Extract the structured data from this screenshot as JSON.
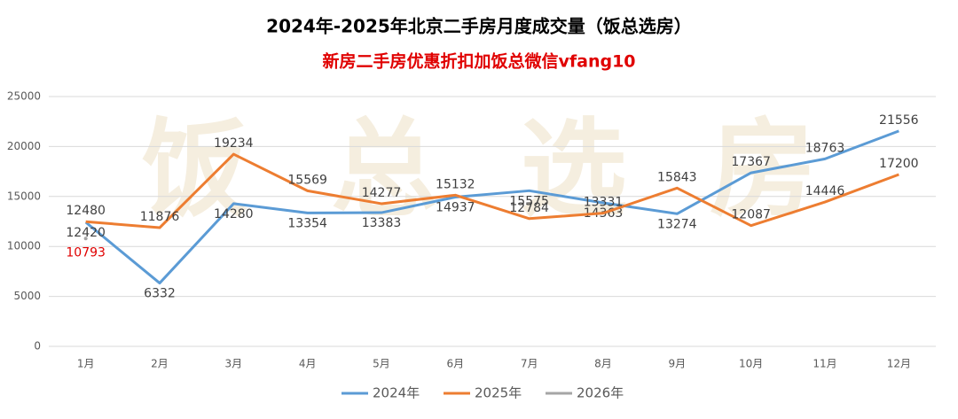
{
  "chart_data": {
    "type": "line",
    "title": "2024年-2025年北京二手房月度成交量（饭总选房）",
    "subtitle": "新房二手房优惠折扣加饭总微信vfang10",
    "watermark": "饭总选房",
    "categories": [
      "1月",
      "2月",
      "3月",
      "4月",
      "5月",
      "6月",
      "7月",
      "8月",
      "9月",
      "10月",
      "11月",
      "12月"
    ],
    "series": [
      {
        "name": "2024年",
        "color": "#5b9bd5",
        "label_color": "#404040",
        "values": [
          12420,
          6332,
          14280,
          13354,
          13383,
          14937,
          15575,
          14363,
          13274,
          17367,
          18763,
          21556
        ]
      },
      {
        "name": "2025年",
        "color": "#ed7d31",
        "label_color": "#404040",
        "values": [
          12480,
          11876,
          19234,
          15569,
          14277,
          15132,
          12784,
          13331,
          15843,
          12087,
          14446,
          17200
        ]
      },
      {
        "name": "2026年",
        "color": "#a5a5a5",
        "label_color": "#e00000",
        "values": [
          10793,
          null,
          null,
          null,
          null,
          null,
          null,
          null,
          null,
          null,
          null,
          null
        ]
      }
    ],
    "ylim": [
      0,
      25000
    ],
    "yticks": [
      0,
      5000,
      10000,
      15000,
      20000,
      25000
    ],
    "grid": true,
    "legend": "bottom"
  }
}
